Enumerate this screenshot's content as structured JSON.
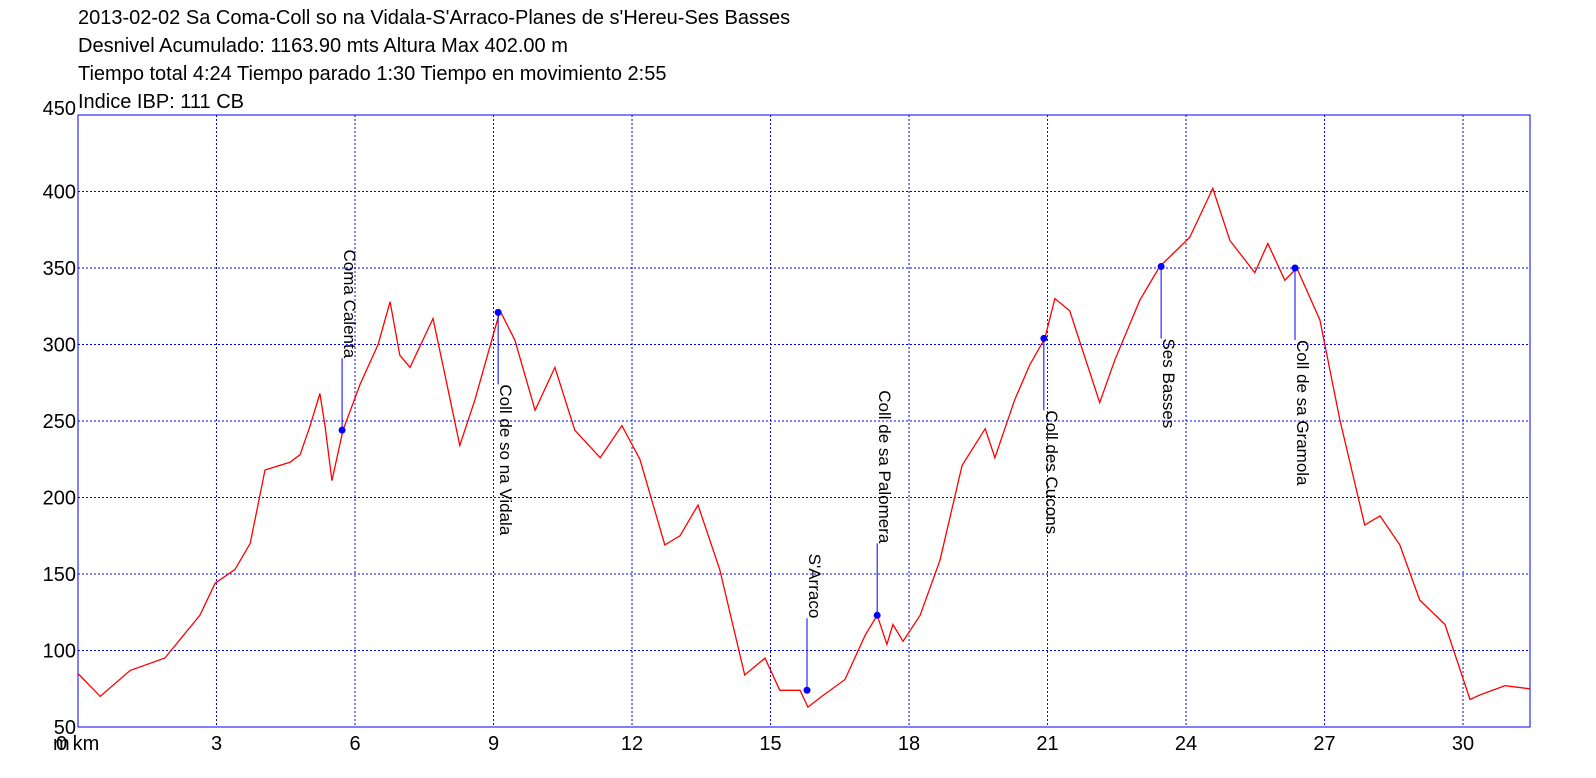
{
  "chart_data": {
    "type": "line",
    "title": "2013-02-02 Sa Coma-Coll so na Vidala-S'Arraco-Planes de s'Hereu-Ses Basses",
    "info": [
      "Desnivel Acumulado: 1163.90 mts  Altura Max 402.00 m",
      "Tiempo total 4:24 Tiempo parado 1:30 Tiempo en movimiento 2:55",
      "Indice IBP: 111 CB"
    ],
    "y_unit": "m",
    "color": "#ff0000",
    "axis_color": "#0000ff",
    "grid": true,
    "xlim": [
      0,
      31.45
    ],
    "ylim": [
      50,
      450
    ],
    "xticks": [
      {
        "value": 0,
        "label": "0 km"
      },
      3,
      6,
      9,
      12,
      15,
      18,
      21,
      24,
      27,
      30
    ],
    "yticks": [
      50,
      100,
      150,
      200,
      250,
      300,
      350,
      400,
      450
    ],
    "x": [
      0,
      0.48,
      1.13,
      1.88,
      2.64,
      2.97,
      3.4,
      3.73,
      4.05,
      4.59,
      4.81,
      5.03,
      5.24,
      5.35,
      5.5,
      5.74,
      6.11,
      6.5,
      6.76,
      6.97,
      7.19,
      7.69,
      7.95,
      8.27,
      8.6,
      9.14,
      9.46,
      9.9,
      10.33,
      10.76,
      11.31,
      11.78,
      12.17,
      12.71,
      13.04,
      13.43,
      13.9,
      14.44,
      14.88,
      15.2,
      15.64,
      15.81,
      16.11,
      16.61,
      17.05,
      17.31,
      17.52,
      17.65,
      17.87,
      18.24,
      18.67,
      19.15,
      19.65,
      19.86,
      20.29,
      20.62,
      20.94,
      21.16,
      21.48,
      22.13,
      22.46,
      23.0,
      23.43,
      24.08,
      24.58,
      24.95,
      25.49,
      25.77,
      26.14,
      26.4,
      26.9,
      27.33,
      27.87,
      28.2,
      28.63,
      29.06,
      29.61,
      30.15,
      30.37,
      30.91,
      31.45
    ],
    "values": [
      85,
      70,
      87,
      95,
      123,
      144,
      153,
      170,
      218,
      223,
      228,
      247,
      268,
      247,
      211,
      244,
      274,
      300,
      328,
      293,
      285,
      317,
      280,
      234,
      264,
      322,
      303,
      257,
      285,
      244,
      226,
      247,
      225,
      169,
      175,
      195,
      153,
      84,
      95,
      74,
      74,
      63,
      70,
      81,
      110,
      123,
      104,
      117,
      106,
      123,
      159,
      221,
      245,
      226,
      264,
      287,
      304,
      330,
      322,
      262,
      290,
      329,
      351,
      370,
      402,
      368,
      347,
      366,
      342,
      350,
      316,
      251,
      182,
      188,
      169,
      133,
      117,
      68,
      71,
      77,
      75
    ],
    "waypoints": [
      {
        "label": "Coma Calenta",
        "x": 5.72,
        "y": 244
      },
      {
        "label": "Coll de so na Vidala",
        "x": 9.1,
        "y": 321
      },
      {
        "label": "S'Arraco",
        "x": 15.79,
        "y": 74
      },
      {
        "label": "Coll de sa Palomera",
        "x": 17.31,
        "y": 123
      },
      {
        "label": "Coll des Cucons",
        "x": 20.92,
        "y": 304
      },
      {
        "label": "Ses Basses",
        "x": 23.46,
        "y": 351
      },
      {
        "label": "Coll de sa Gramola",
        "x": 26.36,
        "y": 350
      }
    ]
  }
}
